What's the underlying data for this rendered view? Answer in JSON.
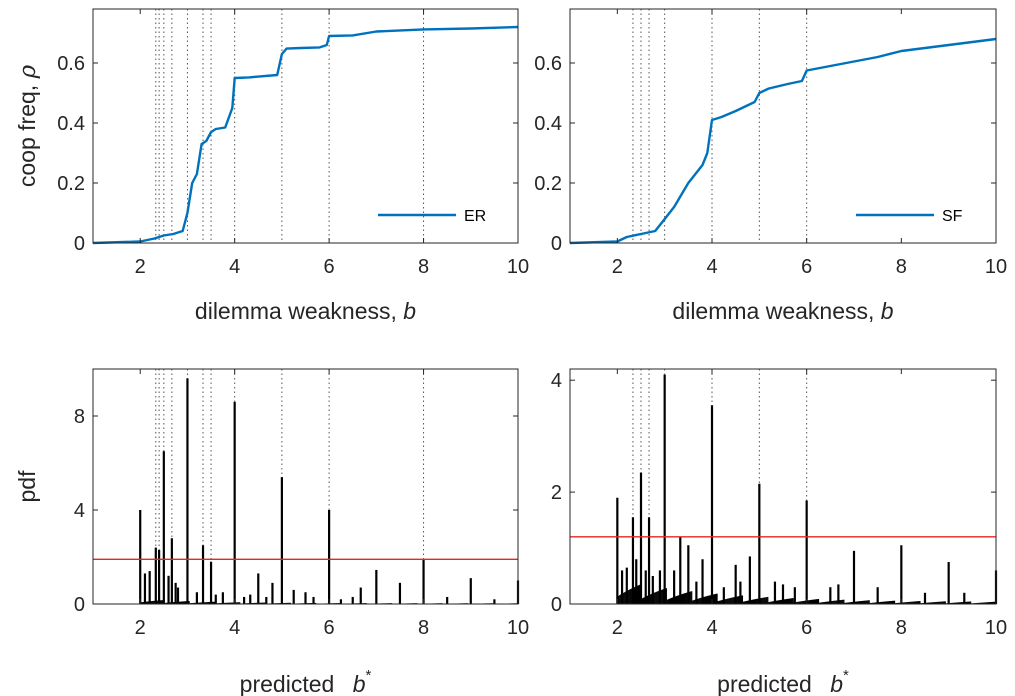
{
  "colors": {
    "line": "#0072BD",
    "bar": "#000000",
    "threshold": "#E8261C",
    "guide": "#555555"
  },
  "chart_data": [
    {
      "id": "ER_coop",
      "type": "line",
      "xlabel": "dilemma weakness, ",
      "xlabel_var": "b",
      "ylabel": "coop freq, ",
      "ylabel_var": "ρ",
      "xlim": [
        1,
        10
      ],
      "ylim": [
        0,
        0.78
      ],
      "xticks": [
        "2",
        "4",
        "6",
        "8",
        "10"
      ],
      "yticks": [
        "0",
        "0.2",
        "0.4",
        "0.6"
      ],
      "guides": [
        2.33,
        2.4,
        2.5,
        2.67,
        3,
        3.33,
        3.5,
        4,
        5,
        6,
        8
      ],
      "series": [
        {
          "name": "ER",
          "x": [
            1,
            2,
            2.3,
            2.5,
            2.7,
            2.9,
            3.0,
            3.1,
            3.2,
            3.3,
            3.4,
            3.5,
            3.6,
            3.8,
            3.95,
            4.0,
            4.3,
            4.9,
            5.0,
            5.1,
            5.4,
            5.8,
            5.95,
            6.0,
            6.5,
            7.0,
            8.0,
            9.0,
            10.0
          ],
          "y": [
            0,
            0.005,
            0.015,
            0.025,
            0.03,
            0.04,
            0.1,
            0.2,
            0.23,
            0.33,
            0.34,
            0.37,
            0.38,
            0.385,
            0.45,
            0.55,
            0.552,
            0.56,
            0.63,
            0.648,
            0.65,
            0.652,
            0.66,
            0.69,
            0.692,
            0.705,
            0.712,
            0.715,
            0.72
          ]
        }
      ]
    },
    {
      "id": "SF_coop",
      "type": "line",
      "xlabel": "dilemma weakness, ",
      "xlabel_var": "b",
      "xlim": [
        1,
        10
      ],
      "ylim": [
        0,
        0.78
      ],
      "xticks": [
        "2",
        "4",
        "6",
        "8",
        "10"
      ],
      "yticks": [
        "0",
        "0.2",
        "0.4",
        "0.6"
      ],
      "guides": [
        2.33,
        2.5,
        2.67,
        3,
        4,
        5,
        6
      ],
      "series": [
        {
          "name": "SF",
          "x": [
            1,
            2,
            2.2,
            2.5,
            2.8,
            3.0,
            3.2,
            3.5,
            3.8,
            3.9,
            4.0,
            4.2,
            4.5,
            4.9,
            5.0,
            5.2,
            5.6,
            5.9,
            6.0,
            6.5,
            7.0,
            7.5,
            8.0,
            9.0,
            10.0
          ],
          "y": [
            0,
            0.005,
            0.02,
            0.03,
            0.04,
            0.08,
            0.12,
            0.2,
            0.26,
            0.3,
            0.41,
            0.42,
            0.44,
            0.47,
            0.5,
            0.515,
            0.53,
            0.54,
            0.575,
            0.59,
            0.605,
            0.62,
            0.64,
            0.66,
            0.68
          ]
        }
      ]
    },
    {
      "id": "ER_pdf",
      "type": "bar",
      "xlabel": "predicted ",
      "xlabel_var": "b",
      "xlabel_sup": "*",
      "ylabel": "pdf",
      "xlim": [
        1,
        10
      ],
      "ylim": [
        0,
        10
      ],
      "xticks": [
        "2",
        "4",
        "6",
        "8",
        "10"
      ],
      "yticks": [
        "0",
        "4",
        "8"
      ],
      "threshold": 1.9,
      "guides": [
        2.33,
        2.4,
        2.5,
        2.67,
        3,
        3.33,
        3.5,
        4,
        5,
        6,
        8
      ],
      "x": [
        2.0,
        2.1,
        2.2,
        2.33,
        2.4,
        2.5,
        2.6,
        2.67,
        2.75,
        2.8,
        3.0,
        3.2,
        3.33,
        3.5,
        3.6,
        3.75,
        4.0,
        4.2,
        4.33,
        4.5,
        4.67,
        4.8,
        5.0,
        5.25,
        5.5,
        5.67,
        6.0,
        6.25,
        6.5,
        6.67,
        7.0,
        7.5,
        8.0,
        8.5,
        9.0,
        9.5,
        10.0
      ],
      "values": [
        4.0,
        1.3,
        1.4,
        2.4,
        2.3,
        6.5,
        1.2,
        2.8,
        0.9,
        0.7,
        9.6,
        0.5,
        2.5,
        1.8,
        0.4,
        0.5,
        8.6,
        0.3,
        0.4,
        1.3,
        0.3,
        0.9,
        5.4,
        0.6,
        0.5,
        0.3,
        4.0,
        0.2,
        0.3,
        0.7,
        1.45,
        0.9,
        1.9,
        0.3,
        1.1,
        0.2,
        1.0
      ]
    },
    {
      "id": "SF_pdf",
      "type": "bar",
      "xlabel": "predicted ",
      "xlabel_var": "b",
      "xlabel_sup": "*",
      "xlim": [
        1,
        10
      ],
      "ylim": [
        0,
        4.2
      ],
      "xticks": [
        "2",
        "4",
        "6",
        "8",
        "10"
      ],
      "yticks": [
        "0",
        "2",
        "4"
      ],
      "threshold": 1.2,
      "guides": [
        2.33,
        2.5,
        2.67,
        3,
        4,
        5,
        6
      ],
      "x": [
        2.0,
        2.1,
        2.2,
        2.33,
        2.4,
        2.5,
        2.6,
        2.67,
        2.75,
        2.9,
        3.0,
        3.2,
        3.33,
        3.5,
        3.67,
        3.8,
        4.0,
        4.25,
        4.5,
        4.6,
        4.8,
        5.0,
        5.33,
        5.5,
        5.75,
        6.0,
        6.5,
        6.67,
        7.0,
        7.5,
        8.0,
        8.5,
        9.0,
        9.33,
        10.0
      ],
      "values": [
        1.9,
        0.6,
        0.65,
        1.55,
        0.8,
        2.35,
        0.6,
        1.55,
        0.5,
        0.6,
        4.1,
        0.6,
        1.2,
        1.05,
        0.4,
        0.8,
        3.55,
        0.3,
        0.7,
        0.4,
        0.85,
        2.15,
        0.4,
        0.35,
        0.3,
        1.85,
        0.3,
        0.35,
        0.95,
        0.3,
        1.05,
        0.2,
        0.75,
        0.2,
        0.6
      ]
    }
  ]
}
